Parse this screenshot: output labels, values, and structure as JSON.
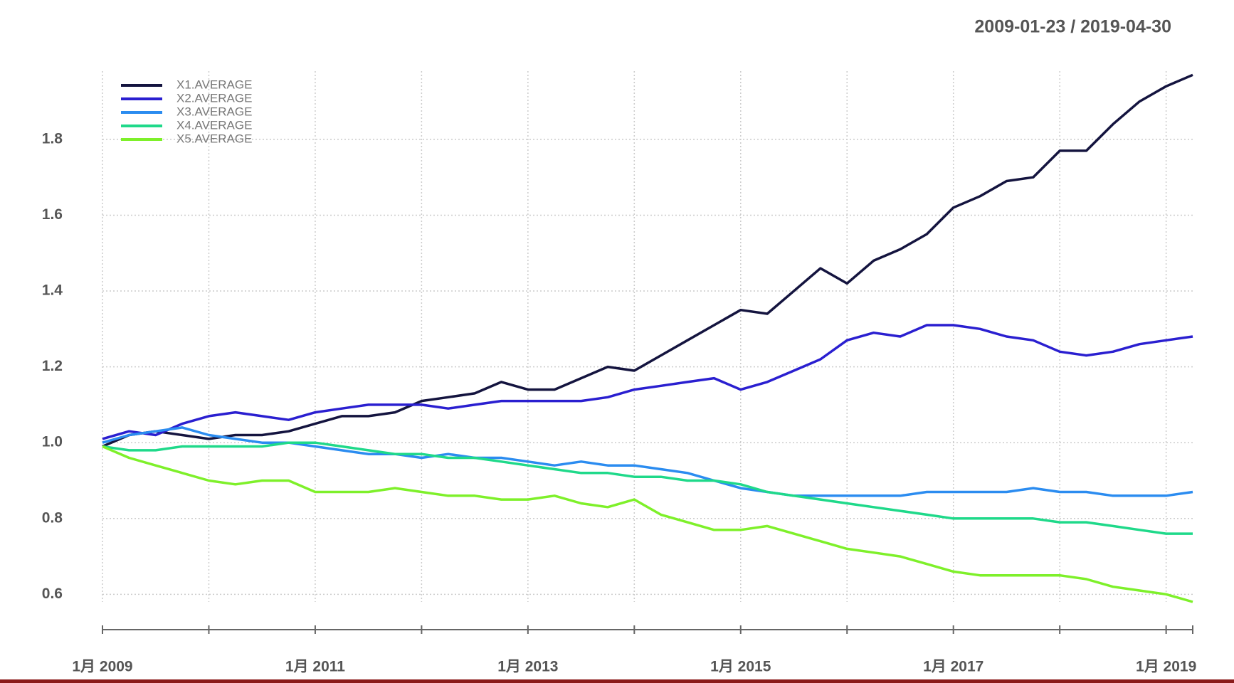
{
  "chart_data": {
    "type": "line",
    "title": "2009-01-23 / 2019-04-30",
    "x": [
      "2009-01",
      "2009-04",
      "2009-07",
      "2009-10",
      "2010-01",
      "2010-04",
      "2010-07",
      "2010-10",
      "2011-01",
      "2011-04",
      "2011-07",
      "2011-10",
      "2012-01",
      "2012-04",
      "2012-07",
      "2012-10",
      "2013-01",
      "2013-04",
      "2013-07",
      "2013-10",
      "2014-01",
      "2014-04",
      "2014-07",
      "2014-10",
      "2015-01",
      "2015-04",
      "2015-07",
      "2015-10",
      "2016-01",
      "2016-04",
      "2016-07",
      "2016-10",
      "2017-01",
      "2017-04",
      "2017-07",
      "2017-10",
      "2018-01",
      "2018-04",
      "2018-07",
      "2018-10",
      "2019-01",
      "2019-04"
    ],
    "series": [
      {
        "name": "X1.AVERAGE",
        "color": "#14143f",
        "values": [
          0.99,
          1.02,
          1.03,
          1.02,
          1.01,
          1.02,
          1.02,
          1.03,
          1.05,
          1.07,
          1.07,
          1.08,
          1.11,
          1.12,
          1.13,
          1.16,
          1.14,
          1.14,
          1.17,
          1.2,
          1.19,
          1.23,
          1.27,
          1.31,
          1.35,
          1.34,
          1.4,
          1.46,
          1.42,
          1.48,
          1.51,
          1.55,
          1.62,
          1.65,
          1.69,
          1.7,
          1.77,
          1.77,
          1.84,
          1.9,
          1.94,
          1.97
        ]
      },
      {
        "name": "X2.AVERAGE",
        "color": "#2a1fd0",
        "values": [
          1.01,
          1.03,
          1.02,
          1.05,
          1.07,
          1.08,
          1.07,
          1.06,
          1.08,
          1.09,
          1.1,
          1.1,
          1.1,
          1.09,
          1.1,
          1.11,
          1.11,
          1.11,
          1.11,
          1.12,
          1.14,
          1.15,
          1.16,
          1.17,
          1.14,
          1.16,
          1.19,
          1.22,
          1.27,
          1.29,
          1.28,
          1.31,
          1.31,
          1.3,
          1.28,
          1.27,
          1.24,
          1.23,
          1.24,
          1.26,
          1.27,
          1.28
        ]
      },
      {
        "name": "X3.AVERAGE",
        "color": "#2b8cf0",
        "values": [
          1.0,
          1.02,
          1.03,
          1.04,
          1.02,
          1.01,
          1.0,
          1.0,
          0.99,
          0.98,
          0.97,
          0.97,
          0.96,
          0.97,
          0.96,
          0.96,
          0.95,
          0.94,
          0.95,
          0.94,
          0.94,
          0.93,
          0.92,
          0.9,
          0.88,
          0.87,
          0.86,
          0.86,
          0.86,
          0.86,
          0.86,
          0.87,
          0.87,
          0.87,
          0.87,
          0.88,
          0.87,
          0.87,
          0.86,
          0.86,
          0.86,
          0.87
        ]
      },
      {
        "name": "X4.AVERAGE",
        "color": "#1fd98a",
        "values": [
          0.99,
          0.98,
          0.98,
          0.99,
          0.99,
          0.99,
          0.99,
          1.0,
          1.0,
          0.99,
          0.98,
          0.97,
          0.97,
          0.96,
          0.96,
          0.95,
          0.94,
          0.93,
          0.92,
          0.92,
          0.91,
          0.91,
          0.9,
          0.9,
          0.89,
          0.87,
          0.86,
          0.85,
          0.84,
          0.83,
          0.82,
          0.81,
          0.8,
          0.8,
          0.8,
          0.8,
          0.79,
          0.79,
          0.78,
          0.77,
          0.76,
          0.76
        ]
      },
      {
        "name": "X5.AVERAGE",
        "color": "#7ef02a",
        "values": [
          0.99,
          0.96,
          0.94,
          0.92,
          0.9,
          0.89,
          0.9,
          0.9,
          0.87,
          0.87,
          0.87,
          0.88,
          0.87,
          0.86,
          0.86,
          0.85,
          0.85,
          0.86,
          0.84,
          0.83,
          0.85,
          0.81,
          0.79,
          0.77,
          0.77,
          0.78,
          0.76,
          0.74,
          0.72,
          0.71,
          0.7,
          0.68,
          0.66,
          0.65,
          0.65,
          0.65,
          0.65,
          0.64,
          0.62,
          0.61,
          0.6,
          0.58
        ]
      }
    ],
    "xlim": [
      "2009-01",
      "2019-04"
    ],
    "xticks": [
      {
        "value": "2009-01",
        "label": "1月 2009"
      },
      {
        "value": "2010-01",
        "label": null
      },
      {
        "value": "2011-01",
        "label": "1月 2011"
      },
      {
        "value": "2012-01",
        "label": null
      },
      {
        "value": "2013-01",
        "label": "1月 2013"
      },
      {
        "value": "2014-01",
        "label": null
      },
      {
        "value": "2015-01",
        "label": "1月 2015"
      },
      {
        "value": "2016-01",
        "label": null
      },
      {
        "value": "2017-01",
        "label": "1月 2017"
      },
      {
        "value": "2018-01",
        "label": null
      },
      {
        "value": "2019-01",
        "label": "1月 2019"
      }
    ],
    "ylim": [
      0.58,
      1.98
    ],
    "yticks": [
      0.6,
      0.8,
      {
        "value": 1,
        "label": "1.0"
      },
      1.2,
      1.4,
      1.6,
      1.8
    ],
    "grid": true,
    "legend": "top-left"
  }
}
